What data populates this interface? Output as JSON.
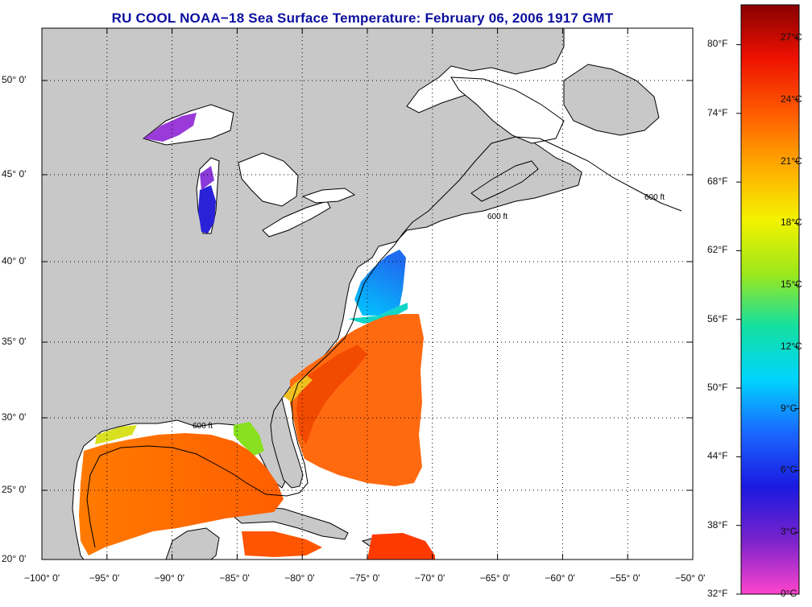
{
  "title": "RU COOL  NOAA−18  Sea Surface Temperature:  February 06, 2006 1917 GMT",
  "map": {
    "lon_range": [
      -100,
      -50
    ],
    "lat_range": [
      20,
      52.3
    ],
    "lon_ticks": [
      {
        "value": -100,
        "label": "−100° 0'"
      },
      {
        "value": -95,
        "label": "−95° 0'"
      },
      {
        "value": -90,
        "label": "−90° 0'"
      },
      {
        "value": -85,
        "label": "−85° 0'"
      },
      {
        "value": -80,
        "label": "−80° 0'"
      },
      {
        "value": -75,
        "label": "−75° 0'"
      },
      {
        "value": -70,
        "label": "−70° 0'"
      },
      {
        "value": -65,
        "label": "−65° 0'"
      },
      {
        "value": -60,
        "label": "−60° 0'"
      },
      {
        "value": -55,
        "label": "−55° 0'"
      },
      {
        "value": -50,
        "label": "−50° 0'"
      }
    ],
    "lat_ticks": [
      {
        "value": 20,
        "label": "20° 0'"
      },
      {
        "value": 25,
        "label": "25° 0'"
      },
      {
        "value": 30,
        "label": "30° 0'"
      },
      {
        "value": 35,
        "label": "35° 0'"
      },
      {
        "value": 40,
        "label": "40° 0'"
      },
      {
        "value": 45,
        "label": "45° 0'"
      },
      {
        "value": 50,
        "label": "50° 0'"
      }
    ],
    "isobath_label": "600 ft",
    "colors": {
      "land": "#c8c8c8",
      "water": "#ffffff",
      "coast": "#000000"
    }
  },
  "colorbar": {
    "fahrenheit": [
      {
        "value": 80,
        "label": "80°F"
      },
      {
        "value": 74,
        "label": "74°F"
      },
      {
        "value": 68,
        "label": "68°F"
      },
      {
        "value": 62,
        "label": "62°F"
      },
      {
        "value": 56,
        "label": "56°F"
      },
      {
        "value": 50,
        "label": "50°F"
      },
      {
        "value": 44,
        "label": "44°F"
      },
      {
        "value": 38,
        "label": "38°F"
      },
      {
        "value": 32,
        "label": "32°F"
      }
    ],
    "celsius": [
      {
        "value": 27,
        "label": "27°C"
      },
      {
        "value": 24,
        "label": "24°C"
      },
      {
        "value": 21,
        "label": "21°C"
      },
      {
        "value": 18,
        "label": "18°C"
      },
      {
        "value": 15,
        "label": "15°C"
      },
      {
        "value": 12,
        "label": "12°C"
      },
      {
        "value": 9,
        "label": "9°C"
      },
      {
        "value": 6,
        "label": "6°C"
      },
      {
        "value": 3,
        "label": "3°C"
      },
      {
        "value": 0,
        "label": "0°C"
      }
    ],
    "range_c": [
      0,
      28.6
    ],
    "gradient": [
      "#ff44cc",
      "#7a22cc",
      "#1a1ae0",
      "#1a66ff",
      "#00d4ff",
      "#14e0a0",
      "#9ee81a",
      "#f4f200",
      "#ffaa00",
      "#ff5a00",
      "#ee1100",
      "#880000"
    ]
  }
}
